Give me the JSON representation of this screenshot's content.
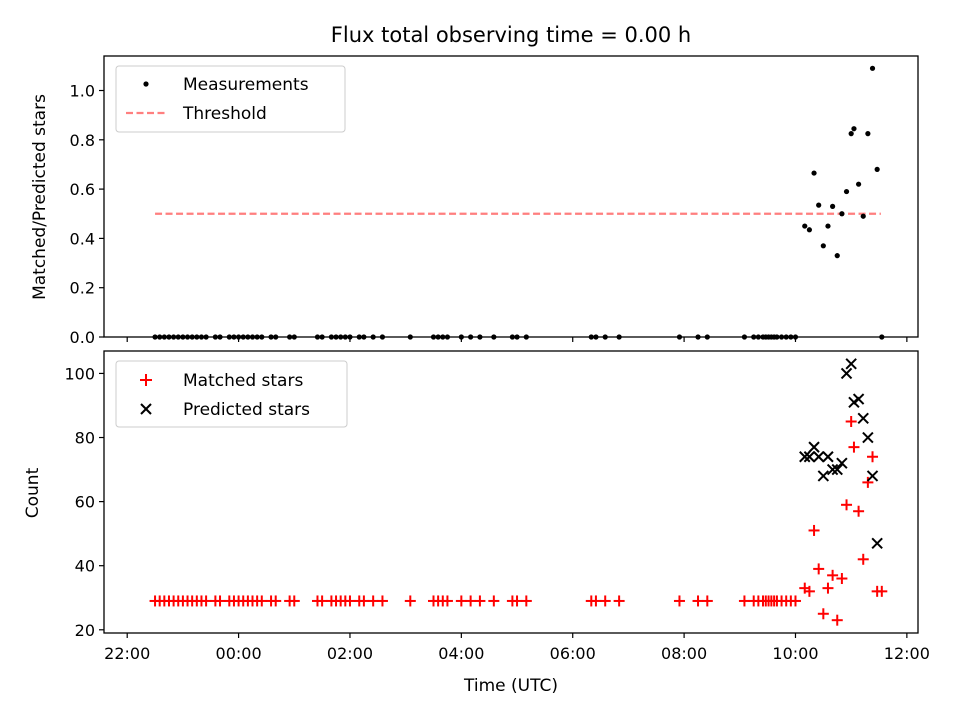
{
  "chart_data": [
    {
      "type": "scatter",
      "title": "Flux total observing time = 0.00 h",
      "xlabel": "",
      "ylabel": "Matched/Predicted stars",
      "ylim": [
        0,
        1.14
      ],
      "yticks": [
        0.0,
        0.2,
        0.4,
        0.6,
        0.8,
        1.0
      ],
      "ytick_labels": [
        "0.0",
        "0.2",
        "0.4",
        "0.6",
        "0.8",
        "1.0"
      ],
      "legend_position": "upper-left",
      "threshold": {
        "name": "Threshold",
        "value": 0.5,
        "x_start": "22:30",
        "x_end": "11:32",
        "color": "#ff7f7f"
      },
      "series": [
        {
          "name": "Measurements",
          "color": "#000000",
          "marker": "dot",
          "points": [
            [
              "22:30",
              0
            ],
            [
              "22:35",
              0
            ],
            [
              "22:40",
              0
            ],
            [
              "22:45",
              0
            ],
            [
              "22:50",
              0
            ],
            [
              "22:55",
              0
            ],
            [
              "23:00",
              0
            ],
            [
              "23:05",
              0
            ],
            [
              "23:10",
              0
            ],
            [
              "23:15",
              0
            ],
            [
              "23:20",
              0
            ],
            [
              "23:25",
              0
            ],
            [
              "23:35",
              0
            ],
            [
              "23:40",
              0
            ],
            [
              "23:50",
              0
            ],
            [
              "23:55",
              0
            ],
            [
              "00:00",
              0
            ],
            [
              "00:05",
              0
            ],
            [
              "00:10",
              0
            ],
            [
              "00:15",
              0
            ],
            [
              "00:20",
              0
            ],
            [
              "00:25",
              0
            ],
            [
              "00:35",
              0
            ],
            [
              "00:40",
              0
            ],
            [
              "00:55",
              0
            ],
            [
              "01:00",
              0
            ],
            [
              "01:25",
              0
            ],
            [
              "01:30",
              0
            ],
            [
              "01:40",
              0
            ],
            [
              "01:45",
              0
            ],
            [
              "01:50",
              0
            ],
            [
              "01:55",
              0
            ],
            [
              "02:00",
              0
            ],
            [
              "02:10",
              0
            ],
            [
              "02:15",
              0
            ],
            [
              "02:25",
              0
            ],
            [
              "02:35",
              0
            ],
            [
              "03:05",
              0
            ],
            [
              "03:30",
              0
            ],
            [
              "03:35",
              0
            ],
            [
              "03:40",
              0
            ],
            [
              "03:45",
              0
            ],
            [
              "04:00",
              0
            ],
            [
              "04:10",
              0
            ],
            [
              "04:20",
              0
            ],
            [
              "04:35",
              0
            ],
            [
              "04:55",
              0
            ],
            [
              "05:00",
              0
            ],
            [
              "05:10",
              0
            ],
            [
              "06:20",
              0
            ],
            [
              "06:25",
              0
            ],
            [
              "06:35",
              0
            ],
            [
              "06:50",
              0
            ],
            [
              "07:55",
              0
            ],
            [
              "08:15",
              0
            ],
            [
              "08:25",
              0
            ],
            [
              "09:05",
              0
            ],
            [
              "09:15",
              0
            ],
            [
              "09:20",
              0
            ],
            [
              "09:25",
              0
            ],
            [
              "09:28",
              0
            ],
            [
              "09:31",
              0
            ],
            [
              "09:34",
              0
            ],
            [
              "09:37",
              0
            ],
            [
              "09:40",
              0
            ],
            [
              "09:45",
              0
            ],
            [
              "09:50",
              0
            ],
            [
              "09:55",
              0
            ],
            [
              "10:00",
              0
            ],
            [
              "10:10",
              0.45
            ],
            [
              "10:15",
              0.435
            ],
            [
              "10:20",
              0.665
            ],
            [
              "10:25",
              0.535
            ],
            [
              "10:30",
              0.37
            ],
            [
              "10:35",
              0.45
            ],
            [
              "10:40",
              0.53
            ],
            [
              "10:45",
              0.33
            ],
            [
              "10:50",
              0.5
            ],
            [
              "10:55",
              0.59
            ],
            [
              "11:00",
              0.825
            ],
            [
              "11:03",
              0.845
            ],
            [
              "11:08",
              0.62
            ],
            [
              "11:13",
              0.49
            ],
            [
              "11:18",
              0.825
            ],
            [
              "11:23",
              1.09
            ],
            [
              "11:28",
              0.68
            ],
            [
              "11:33",
              0
            ]
          ]
        }
      ]
    },
    {
      "type": "scatter",
      "title": "",
      "xlabel": "Time (UTC)",
      "ylabel": "Count",
      "ylim": [
        19,
        107
      ],
      "yticks": [
        20,
        40,
        60,
        80,
        100
      ],
      "ytick_labels": [
        "20",
        "40",
        "60",
        "80",
        "100"
      ],
      "x_range": [
        "21:35",
        "12:12"
      ],
      "xticks": [
        "22:00",
        "00:00",
        "02:00",
        "04:00",
        "06:00",
        "08:00",
        "10:00",
        "12:00"
      ],
      "xtick_labels": [
        "22:00",
        "00:00",
        "02:00",
        "04:00",
        "06:00",
        "08:00",
        "10:00",
        "12:00"
      ],
      "legend_position": "upper-left",
      "series": [
        {
          "name": "Matched stars",
          "color": "#ff0000",
          "marker": "plus",
          "points": [
            [
              "22:30",
              29
            ],
            [
              "22:35",
              29
            ],
            [
              "22:40",
              29
            ],
            [
              "22:45",
              29
            ],
            [
              "22:50",
              29
            ],
            [
              "22:55",
              29
            ],
            [
              "23:00",
              29
            ],
            [
              "23:05",
              29
            ],
            [
              "23:10",
              29
            ],
            [
              "23:15",
              29
            ],
            [
              "23:20",
              29
            ],
            [
              "23:25",
              29
            ],
            [
              "23:35",
              29
            ],
            [
              "23:40",
              29
            ],
            [
              "23:50",
              29
            ],
            [
              "23:55",
              29
            ],
            [
              "00:00",
              29
            ],
            [
              "00:05",
              29
            ],
            [
              "00:10",
              29
            ],
            [
              "00:15",
              29
            ],
            [
              "00:20",
              29
            ],
            [
              "00:25",
              29
            ],
            [
              "00:35",
              29
            ],
            [
              "00:40",
              29
            ],
            [
              "00:55",
              29
            ],
            [
              "01:00",
              29
            ],
            [
              "01:25",
              29
            ],
            [
              "01:30",
              29
            ],
            [
              "01:40",
              29
            ],
            [
              "01:45",
              29
            ],
            [
              "01:50",
              29
            ],
            [
              "01:55",
              29
            ],
            [
              "02:00",
              29
            ],
            [
              "02:10",
              29
            ],
            [
              "02:15",
              29
            ],
            [
              "02:25",
              29
            ],
            [
              "02:35",
              29
            ],
            [
              "03:05",
              29
            ],
            [
              "03:30",
              29
            ],
            [
              "03:35",
              29
            ],
            [
              "03:40",
              29
            ],
            [
              "03:45",
              29
            ],
            [
              "04:00",
              29
            ],
            [
              "04:10",
              29
            ],
            [
              "04:20",
              29
            ],
            [
              "04:35",
              29
            ],
            [
              "04:55",
              29
            ],
            [
              "05:00",
              29
            ],
            [
              "05:10",
              29
            ],
            [
              "06:20",
              29
            ],
            [
              "06:25",
              29
            ],
            [
              "06:35",
              29
            ],
            [
              "06:50",
              29
            ],
            [
              "07:55",
              29
            ],
            [
              "08:15",
              29
            ],
            [
              "08:25",
              29
            ],
            [
              "09:05",
              29
            ],
            [
              "09:15",
              29
            ],
            [
              "09:20",
              29
            ],
            [
              "09:25",
              29
            ],
            [
              "09:28",
              29
            ],
            [
              "09:31",
              29
            ],
            [
              "09:34",
              29
            ],
            [
              "09:37",
              29
            ],
            [
              "09:40",
              29
            ],
            [
              "09:45",
              29
            ],
            [
              "09:50",
              29
            ],
            [
              "09:55",
              29
            ],
            [
              "10:00",
              29
            ],
            [
              "10:10",
              33
            ],
            [
              "10:15",
              32
            ],
            [
              "10:20",
              51
            ],
            [
              "10:25",
              39
            ],
            [
              "10:30",
              25
            ],
            [
              "10:35",
              33
            ],
            [
              "10:40",
              37
            ],
            [
              "10:45",
              23
            ],
            [
              "10:50",
              36
            ],
            [
              "10:55",
              59
            ],
            [
              "11:00",
              85
            ],
            [
              "11:03",
              77
            ],
            [
              "11:08",
              57
            ],
            [
              "11:13",
              42
            ],
            [
              "11:18",
              66
            ],
            [
              "11:23",
              74
            ],
            [
              "11:28",
              32
            ],
            [
              "11:33",
              32
            ]
          ]
        },
        {
          "name": "Predicted stars",
          "color": "#000000",
          "marker": "x",
          "points": [
            [
              "10:10",
              74
            ],
            [
              "10:15",
              74
            ],
            [
              "10:20",
              77
            ],
            [
              "10:25",
              74
            ],
            [
              "10:30",
              68
            ],
            [
              "10:35",
              74
            ],
            [
              "10:40",
              70
            ],
            [
              "10:45",
              70
            ],
            [
              "10:50",
              72
            ],
            [
              "10:55",
              100
            ],
            [
              "11:00",
              103
            ],
            [
              "11:03",
              91
            ],
            [
              "11:08",
              92
            ],
            [
              "11:13",
              86
            ],
            [
              "11:18",
              80
            ],
            [
              "11:23",
              68
            ],
            [
              "11:28",
              47
            ]
          ]
        }
      ]
    }
  ]
}
